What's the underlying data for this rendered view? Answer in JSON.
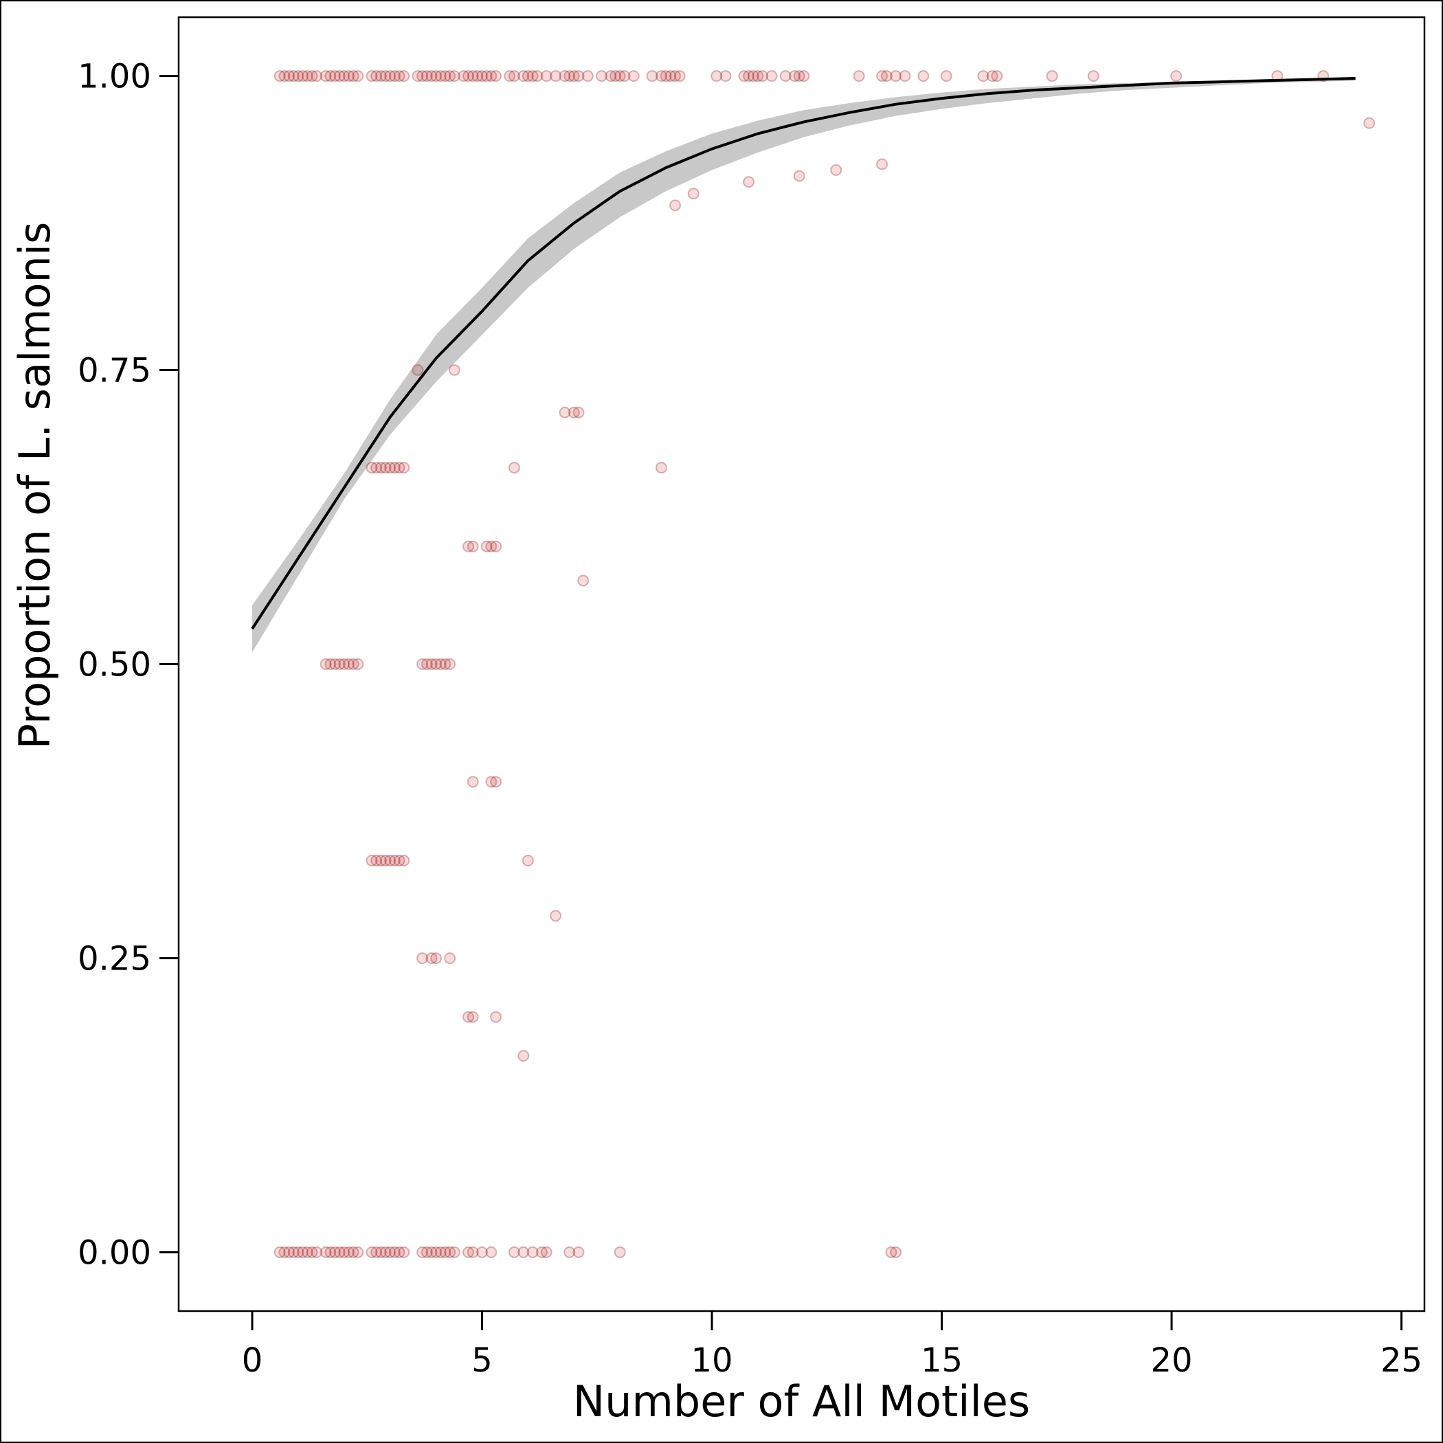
{
  "chart_data": {
    "type": "scatter",
    "xlabel": "Number of All Motiles",
    "ylabel": "Proportion of L. salmonis",
    "xlim": [
      -1.6,
      25.5
    ],
    "ylim": [
      -0.05,
      1.05
    ],
    "x_ticks": [
      0,
      5,
      10,
      15,
      20,
      25
    ],
    "x_tick_labels": [
      "0",
      "5",
      "10",
      "15",
      "20",
      "25"
    ],
    "y_ticks": [
      0.0,
      0.25,
      0.5,
      0.75,
      1.0
    ],
    "y_tick_labels": [
      "0.00",
      "0.25",
      "0.50",
      "0.75",
      "1.00"
    ],
    "grid": false,
    "colors": {
      "points": "#cc0000",
      "fit_line": "#000000",
      "confidence_band": "#c8c8c8",
      "frame": "#000000"
    },
    "points": [
      {
        "y": 1.0,
        "x": [
          0.6,
          0.7,
          0.8,
          0.9,
          1.0,
          1.1,
          1.2,
          1.3,
          1.4,
          1.6,
          1.7,
          1.8,
          1.9,
          2.0,
          2.1,
          2.2,
          2.3,
          2.6,
          2.7,
          2.8,
          2.9,
          3.0,
          3.1,
          3.2,
          3.3,
          3.6,
          3.7,
          3.8,
          3.9,
          4.0,
          4.1,
          4.2,
          4.3,
          4.4,
          4.6,
          4.7,
          4.8,
          4.9,
          5.0,
          5.1,
          5.2,
          5.3,
          5.6,
          5.7,
          5.9,
          6.0,
          6.1,
          6.2,
          6.4,
          6.6,
          6.8,
          6.9,
          7.0,
          7.1,
          7.3,
          7.6,
          7.8,
          7.9,
          8.0,
          8.1,
          8.3,
          8.7,
          8.9,
          9.0,
          9.1,
          9.2,
          9.3,
          10.1,
          10.3,
          10.7,
          10.8,
          10.9,
          11.0,
          11.1,
          11.3,
          11.6,
          11.8,
          11.9,
          12.0,
          13.2,
          13.7,
          13.8,
          14.0,
          14.2,
          14.6,
          15.1,
          15.9,
          16.1,
          16.2,
          17.4,
          18.3,
          20.1,
          22.3,
          23.3
        ]
      },
      {
        "y": 0.96,
        "x": [
          24.3
        ]
      },
      {
        "y": 0.925,
        "x": [
          13.7
        ]
      },
      {
        "y": 0.92,
        "x": [
          12.7
        ]
      },
      {
        "y": 0.915,
        "x": [
          11.9
        ]
      },
      {
        "y": 0.91,
        "x": [
          10.8
        ]
      },
      {
        "y": 0.9,
        "x": [
          9.6
        ]
      },
      {
        "y": 0.89,
        "x": [
          9.2
        ]
      },
      {
        "y": 0.75,
        "x": [
          3.6,
          4.4
        ]
      },
      {
        "y": 0.714,
        "x": [
          6.8,
          7.0,
          7.1
        ]
      },
      {
        "y": 0.667,
        "x": [
          2.6,
          2.7,
          2.8,
          2.9,
          3.0,
          3.1,
          3.2,
          3.3,
          5.7,
          8.9
        ]
      },
      {
        "y": 0.6,
        "x": [
          4.7,
          4.8,
          5.1,
          5.2,
          5.3
        ]
      },
      {
        "y": 0.571,
        "x": [
          7.2
        ]
      },
      {
        "y": 0.5,
        "x": [
          1.6,
          1.7,
          1.8,
          1.9,
          2.0,
          2.1,
          2.2,
          2.3,
          3.7,
          3.8,
          3.9,
          4.0,
          4.1,
          4.2,
          4.3
        ]
      },
      {
        "y": 0.4,
        "x": [
          4.8,
          5.2,
          5.3
        ]
      },
      {
        "y": 0.333,
        "x": [
          2.6,
          2.7,
          2.8,
          2.9,
          3.0,
          3.1,
          3.2,
          3.3,
          6.0
        ]
      },
      {
        "y": 0.286,
        "x": [
          6.6
        ]
      },
      {
        "y": 0.25,
        "x": [
          3.7,
          3.9,
          4.0,
          4.3
        ]
      },
      {
        "y": 0.2,
        "x": [
          4.7,
          4.8,
          5.3
        ]
      },
      {
        "y": 0.167,
        "x": [
          5.9
        ]
      },
      {
        "y": 0.0,
        "x": [
          0.6,
          0.7,
          0.8,
          0.9,
          1.0,
          1.1,
          1.2,
          1.3,
          1.4,
          1.6,
          1.7,
          1.8,
          1.9,
          2.0,
          2.1,
          2.2,
          2.3,
          2.6,
          2.7,
          2.8,
          2.9,
          3.0,
          3.1,
          3.2,
          3.3,
          3.7,
          3.8,
          3.9,
          4.0,
          4.1,
          4.2,
          4.3,
          4.4,
          4.7,
          4.8,
          5.0,
          5.2,
          5.7,
          5.9,
          6.1,
          6.3,
          6.4,
          6.9,
          7.1,
          8.0,
          13.9,
          14.0
        ]
      }
    ],
    "fit": {
      "x": [
        0,
        1,
        2,
        3,
        4,
        5,
        6,
        7,
        8,
        9,
        10,
        11,
        12,
        13,
        14,
        15,
        16,
        17,
        18,
        19,
        20,
        21,
        22,
        23,
        24
      ],
      "y": [
        0.53,
        0.59,
        0.65,
        0.71,
        0.76,
        0.8,
        0.843,
        0.875,
        0.902,
        0.922,
        0.938,
        0.951,
        0.961,
        0.969,
        0.976,
        0.981,
        0.985,
        0.988,
        0.99,
        0.992,
        0.994,
        0.995,
        0.996,
        0.997,
        0.998
      ],
      "lower": [
        0.51,
        0.575,
        0.64,
        0.695,
        0.74,
        0.78,
        0.82,
        0.853,
        0.88,
        0.902,
        0.92,
        0.935,
        0.948,
        0.958,
        0.966,
        0.972,
        0.977,
        0.981,
        0.985,
        0.988,
        0.99,
        0.992,
        0.994,
        0.995,
        0.996
      ],
      "upper": [
        0.55,
        0.605,
        0.662,
        0.725,
        0.78,
        0.82,
        0.862,
        0.892,
        0.918,
        0.936,
        0.951,
        0.962,
        0.971,
        0.977,
        0.982,
        0.986,
        0.989,
        0.991,
        0.993,
        0.994,
        0.995,
        0.996,
        0.997,
        0.998,
        0.999
      ]
    }
  }
}
